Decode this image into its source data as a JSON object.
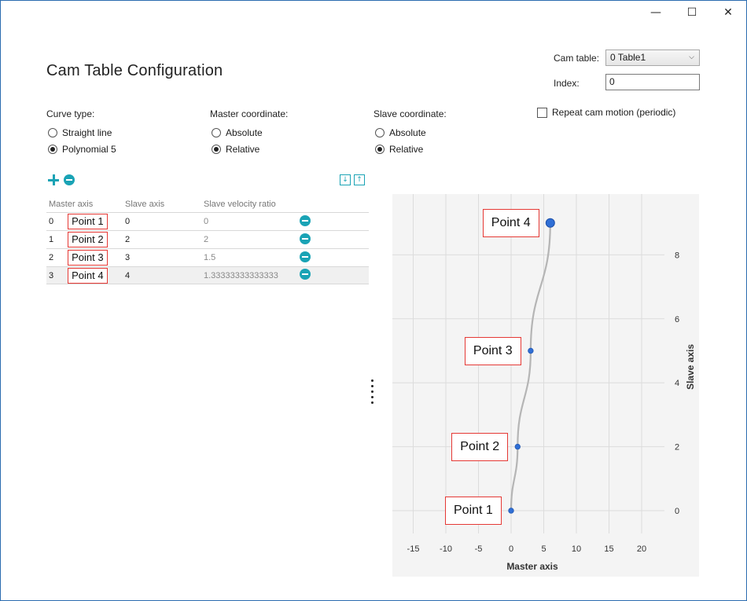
{
  "window": {
    "minimize": "—",
    "maximize": "☐",
    "close": "✕"
  },
  "title": "Cam Table Configuration",
  "cam_table": {
    "label": "Cam table:",
    "value": "0 Table1"
  },
  "index": {
    "label": "Index:",
    "value": "0"
  },
  "curve_type": {
    "title": "Curve type:",
    "options": [
      {
        "label": "Straight line",
        "selected": false
      },
      {
        "label": "Polynomial 5",
        "selected": true
      }
    ]
  },
  "master_coordinate": {
    "title": "Master coordinate:",
    "options": [
      {
        "label": "Absolute",
        "selected": false
      },
      {
        "label": "Relative",
        "selected": true
      }
    ]
  },
  "slave_coordinate": {
    "title": "Slave coordinate:",
    "options": [
      {
        "label": "Absolute",
        "selected": false
      },
      {
        "label": "Relative",
        "selected": true
      }
    ]
  },
  "repeat": {
    "label": "Repeat cam motion (periodic)",
    "checked": false
  },
  "table": {
    "headers": [
      "Master axis",
      "Slave axis",
      "Slave velocity ratio"
    ],
    "rows": [
      {
        "index": "0",
        "point": "Point 1",
        "slave": "0",
        "ratio": "0"
      },
      {
        "index": "1",
        "point": "Point 2",
        "slave": "2",
        "ratio": "2"
      },
      {
        "index": "2",
        "point": "Point 3",
        "slave": "3",
        "ratio": "1.5"
      },
      {
        "index": "3",
        "point": "Point 4",
        "slave": "4",
        "ratio": "1.33333333333333"
      }
    ]
  },
  "chart_data": {
    "type": "line",
    "xlabel": "Master axis",
    "ylabel": "Slave axis",
    "xlim": [
      -18,
      24
    ],
    "ylim": [
      -0.9,
      10
    ],
    "x_ticks": [
      -15,
      -10,
      -5,
      0,
      5,
      10,
      15,
      20
    ],
    "y_ticks": [
      0,
      2,
      4,
      6,
      8
    ],
    "points": [
      {
        "x": 0,
        "y": 0,
        "label": "Point 1"
      },
      {
        "x": 1,
        "y": 2,
        "label": "Point 2"
      },
      {
        "x": 3,
        "y": 5,
        "label": "Point 3"
      },
      {
        "x": 6,
        "y": 9,
        "label": "Point 4"
      }
    ],
    "grid": true,
    "colors": {
      "line": "#b5b5b5",
      "point": "#2f6fd6"
    }
  }
}
